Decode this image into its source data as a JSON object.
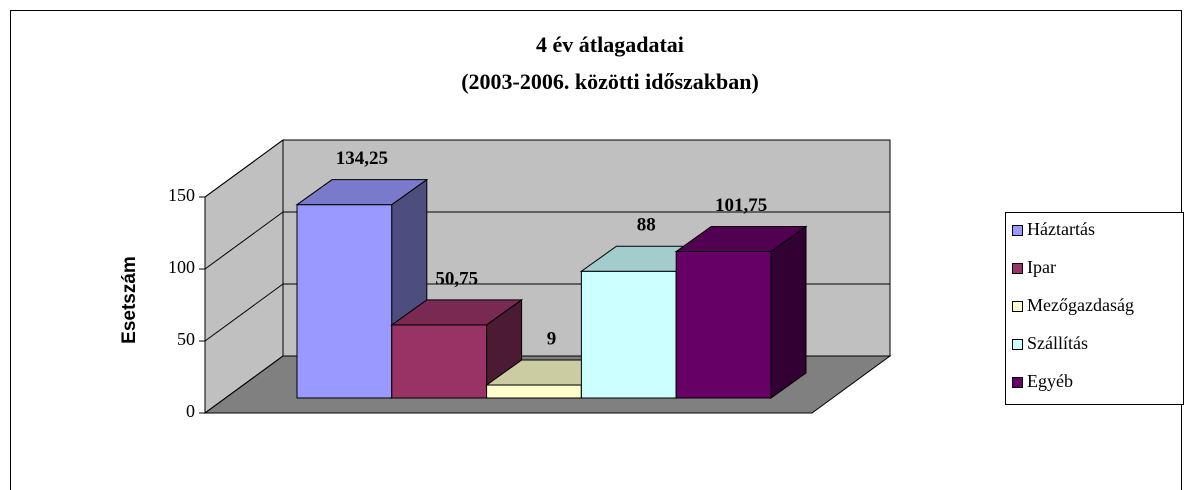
{
  "chart_data": {
    "type": "bar3d",
    "title": [
      "4 év átlagadatai",
      "(2003-2006. közötti időszakban)"
    ],
    "y_label": "Esetszám",
    "series": [
      {
        "name": "Háztartás",
        "color": "#9999ff",
        "values": [
          134.25
        ],
        "value_labels": [
          "134,25"
        ]
      },
      {
        "name": "Ipar",
        "color": "#993366",
        "values": [
          50.75
        ],
        "value_labels": [
          "50,75"
        ]
      },
      {
        "name": "Mezőgazdaság",
        "color": "#ffffcc",
        "values": [
          9
        ],
        "value_labels": [
          "9"
        ]
      },
      {
        "name": "Szállítás",
        "color": "#ccffff",
        "values": [
          88
        ],
        "value_labels": [
          "88"
        ]
      },
      {
        "name": "Egyéb",
        "color": "#660066",
        "values": [
          101.75
        ],
        "value_labels": [
          "101,75"
        ]
      }
    ],
    "ylim": [
      0,
      150
    ],
    "yticks": [
      0,
      50,
      100,
      150
    ],
    "grid": true,
    "legend": "right",
    "wall_color": "#c0c0c0",
    "floor_color": "#808080"
  }
}
